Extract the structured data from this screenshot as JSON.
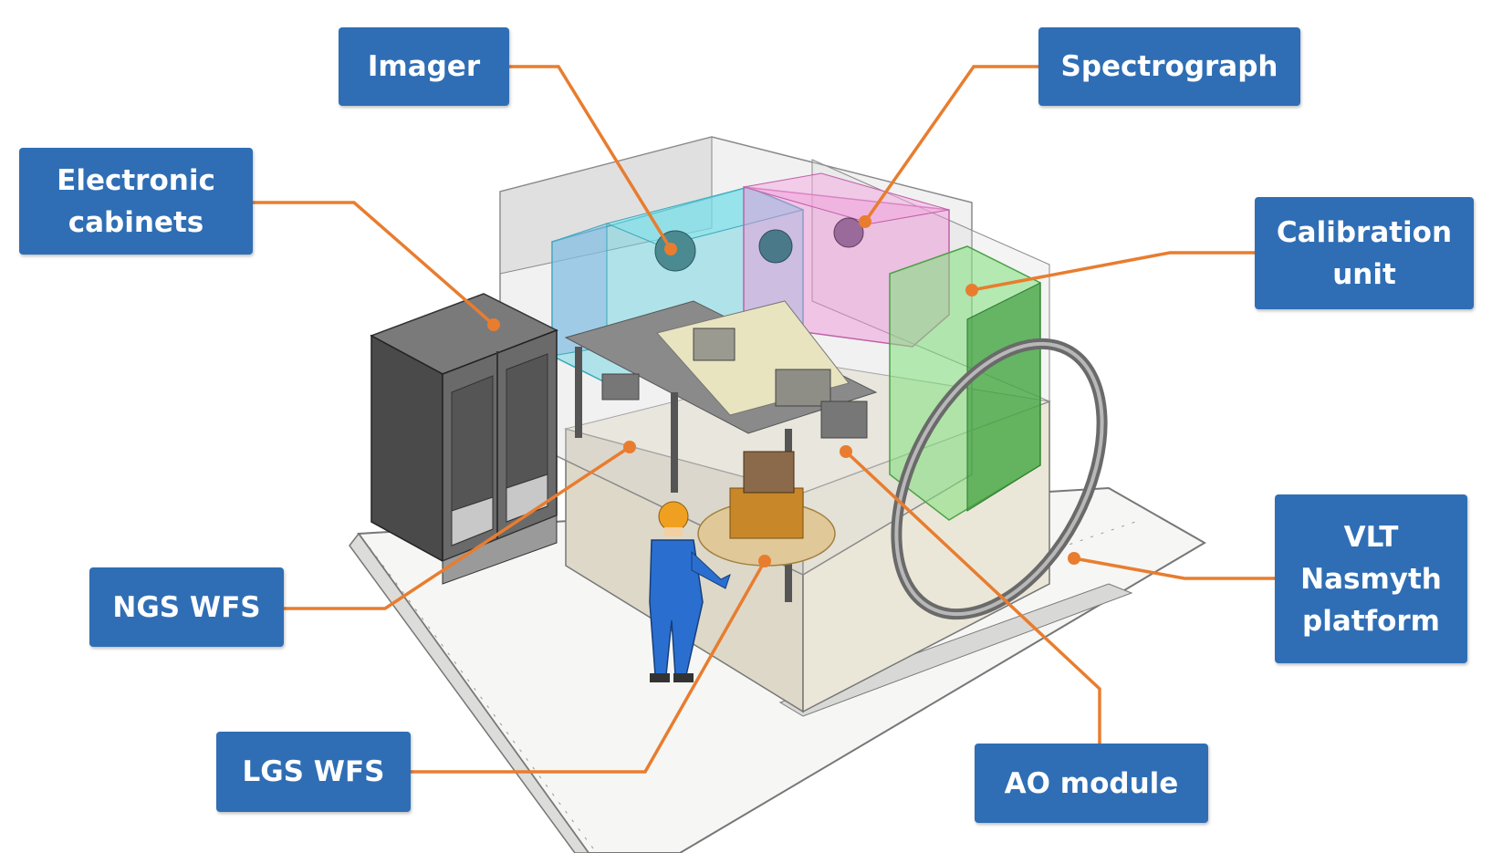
{
  "labels": {
    "imager": {
      "lines": [
        "Imager"
      ]
    },
    "spectrograph": {
      "lines": [
        "Spectrograph"
      ]
    },
    "electronic_cabinets": {
      "lines": [
        "Electronic",
        "cabinets"
      ]
    },
    "calibration_unit": {
      "lines": [
        "Calibration",
        "unit"
      ]
    },
    "ngs_wfs": {
      "lines": [
        "NGS WFS"
      ]
    },
    "lgs_wfs": {
      "lines": [
        "LGS WFS"
      ]
    },
    "ao_module": {
      "lines": [
        "AO module"
      ]
    },
    "vlt_platform": {
      "lines": [
        "VLT",
        "Nasmyth",
        "platform"
      ]
    }
  },
  "colors": {
    "label_fill": "#2f6eb5",
    "label_text": "#ffffff",
    "leader_line": "#e87d2f",
    "imager_volume": "#5fd3e0",
    "spectrograph_volume": "#f08fd6",
    "calibration_volume": "#7fe07a",
    "platform": "#f4f4f2",
    "cabinet": "#5a5a5a",
    "worker_suit": "#2a6fd0",
    "worker_helmet": "#f0a020"
  }
}
